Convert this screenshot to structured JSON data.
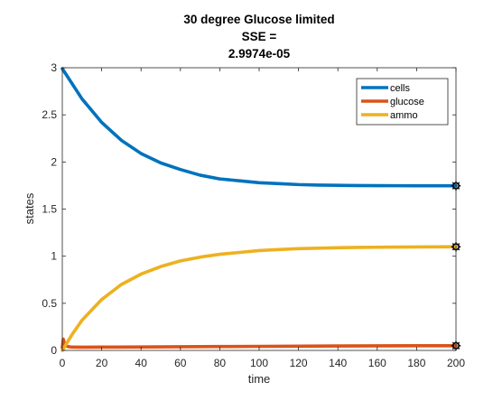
{
  "chart_data": {
    "type": "line",
    "title_lines": [
      "30 degree Glucose limited",
      "SSE =",
      "2.9974e-05"
    ],
    "xlabel": "time",
    "ylabel": "states",
    "xlim": [
      0,
      200
    ],
    "ylim": [
      0,
      3
    ],
    "xticks": [
      0,
      20,
      40,
      60,
      80,
      100,
      120,
      140,
      160,
      180,
      200
    ],
    "yticks": [
      0,
      0.5,
      1,
      1.5,
      2,
      2.5,
      3
    ],
    "xtick_labels": [
      "0",
      "20",
      "40",
      "60",
      "80",
      "100",
      "120",
      "140",
      "160",
      "180",
      "200"
    ],
    "ytick_labels": [
      "0",
      "0.5",
      "1",
      "1.5",
      "2",
      "2.5",
      "3"
    ],
    "grid": false,
    "legend_position": "top-right",
    "series": [
      {
        "name": "cells",
        "color": "#0072BD",
        "x": [
          0,
          10,
          20,
          30,
          40,
          50,
          60,
          70,
          80,
          90,
          100,
          110,
          120,
          130,
          140,
          150,
          160,
          170,
          180,
          190,
          200
        ],
        "y": [
          2.99,
          2.67,
          2.42,
          2.23,
          2.09,
          1.99,
          1.92,
          1.86,
          1.82,
          1.8,
          1.78,
          1.77,
          1.76,
          1.755,
          1.752,
          1.75,
          1.749,
          1.748,
          1.747,
          1.747,
          1.747
        ]
      },
      {
        "name": "glucose",
        "color": "#D95319",
        "x": [
          0,
          0.5,
          1,
          2,
          3,
          5,
          10,
          20,
          40,
          60,
          80,
          100,
          120,
          140,
          160,
          180,
          200
        ],
        "y": [
          0.03,
          0.12,
          0.08,
          0.05,
          0.04,
          0.035,
          0.034,
          0.035,
          0.037,
          0.039,
          0.041,
          0.043,
          0.045,
          0.047,
          0.049,
          0.05,
          0.05
        ]
      },
      {
        "name": "ammo",
        "color": "#EDB120",
        "x": [
          0,
          5,
          10,
          20,
          30,
          40,
          50,
          60,
          70,
          80,
          90,
          100,
          110,
          120,
          130,
          140,
          150,
          160,
          170,
          180,
          190,
          200
        ],
        "y": [
          0.0,
          0.17,
          0.32,
          0.54,
          0.7,
          0.81,
          0.89,
          0.95,
          0.99,
          1.02,
          1.04,
          1.06,
          1.07,
          1.08,
          1.085,
          1.09,
          1.093,
          1.095,
          1.097,
          1.098,
          1.099,
          1.1
        ]
      }
    ],
    "endpoint_markers": [
      {
        "x": 200,
        "y": 1.747
      },
      {
        "x": 200,
        "y": 1.1
      },
      {
        "x": 200,
        "y": 0.05
      }
    ]
  }
}
